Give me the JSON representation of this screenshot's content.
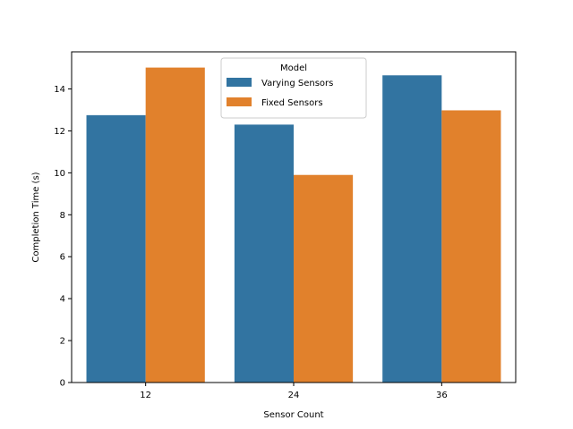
{
  "chart_data": {
    "type": "bar",
    "title": "",
    "xlabel": "Sensor Count",
    "ylabel": "Completion Time (s)",
    "categories": [
      "12",
      "24",
      "36"
    ],
    "series": [
      {
        "name": "Varying Sensors",
        "color": "#3274a1",
        "values": [
          12.75,
          12.3,
          14.65
        ]
      },
      {
        "name": "Fixed Sensors",
        "color": "#e1812c",
        "values": [
          15.02,
          9.9,
          12.98
        ]
      }
    ],
    "ylim": [
      0,
      15.77
    ],
    "yticks": [
      0,
      2,
      4,
      6,
      8,
      10,
      12,
      14
    ],
    "legend": {
      "title": "Model",
      "position": "top-center"
    },
    "grid": false
  }
}
